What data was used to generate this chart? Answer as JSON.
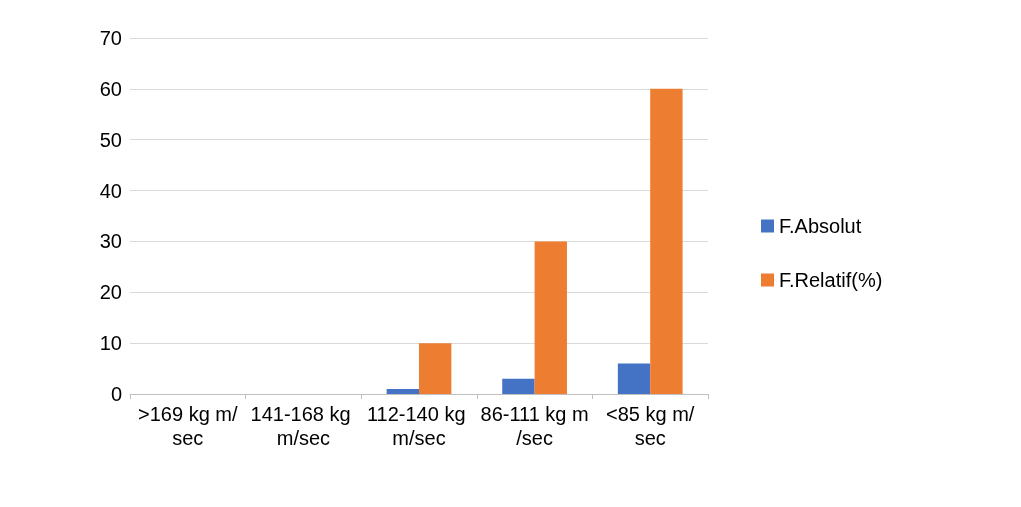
{
  "chart_data": {
    "type": "bar",
    "categories": [
      ">169 kg m/sec",
      "141-168 kg m/sec",
      "112-140 kg m/sec",
      "86-111 kg m/sec",
      "<85 kg m/sec"
    ],
    "series": [
      {
        "name": "F.Absolut",
        "color": "#4472c4",
        "values": [
          0,
          0,
          1,
          3,
          6
        ]
      },
      {
        "name": "F.Relatif(%)",
        "color": "#ed7d31",
        "values": [
          0,
          0,
          10,
          30,
          60
        ]
      }
    ],
    "ylim": [
      0,
      70
    ],
    "yticks": [
      0,
      10,
      20,
      30,
      40,
      50,
      60,
      70
    ],
    "grid": "y",
    "legend": "right"
  }
}
